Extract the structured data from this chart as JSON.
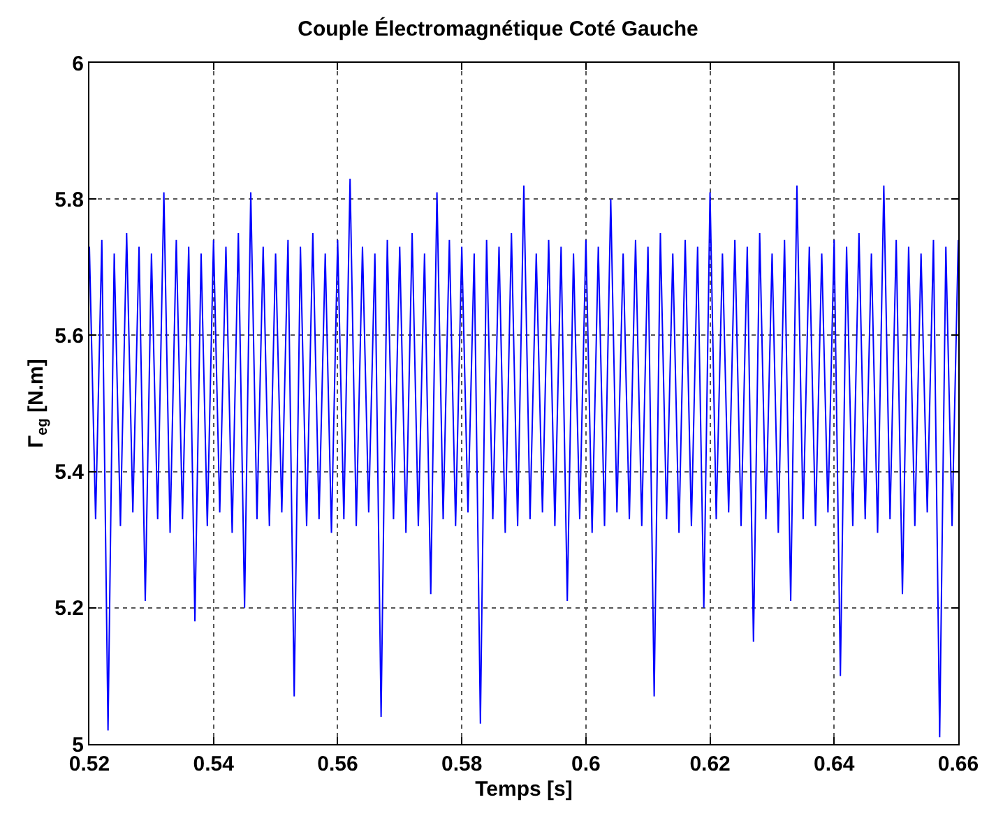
{
  "chart_data": {
    "type": "line",
    "title": "Couple Électromagnétique Coté Gauche",
    "xlabel": "Temps [s]",
    "ylabel": "Γ$_{eg}$ [N.m]",
    "xlim": [
      0.52,
      0.66
    ],
    "xticks": [
      0.52,
      0.54,
      0.56,
      0.58,
      0.6,
      0.62,
      0.64,
      0.66
    ],
    "ylim": [
      5,
      6
    ],
    "yticks": [
      5,
      5.2,
      5.4,
      5.6,
      5.8,
      6
    ],
    "grid": true,
    "legend": false,
    "marker": "none",
    "line_style": "solid",
    "x": [
      0.52,
      0.521,
      0.522,
      0.523,
      0.524,
      0.525,
      0.526,
      0.527,
      0.528,
      0.529,
      0.53,
      0.531,
      0.532,
      0.533,
      0.534,
      0.535,
      0.536,
      0.537,
      0.538,
      0.539,
      0.54,
      0.541,
      0.542,
      0.543,
      0.544,
      0.545,
      0.546,
      0.547,
      0.548,
      0.549,
      0.55,
      0.551,
      0.552,
      0.553,
      0.554,
      0.555,
      0.556,
      0.557,
      0.558,
      0.559,
      0.56,
      0.561,
      0.562,
      0.563,
      0.564,
      0.565,
      0.566,
      0.567,
      0.568,
      0.569,
      0.57,
      0.571,
      0.572,
      0.573,
      0.574,
      0.575,
      0.576,
      0.577,
      0.578,
      0.579,
      0.58,
      0.581,
      0.582,
      0.583,
      0.584,
      0.585,
      0.586,
      0.587,
      0.588,
      0.589,
      0.59,
      0.591,
      0.592,
      0.593,
      0.594,
      0.595,
      0.596,
      0.597,
      0.598,
      0.599,
      0.6,
      0.601,
      0.602,
      0.603,
      0.604,
      0.605,
      0.606,
      0.607,
      0.608,
      0.609,
      0.61,
      0.611,
      0.612,
      0.613,
      0.614,
      0.615,
      0.616,
      0.617,
      0.618,
      0.619,
      0.62,
      0.621,
      0.622,
      0.623,
      0.624,
      0.625,
      0.626,
      0.627,
      0.628,
      0.629,
      0.63,
      0.631,
      0.632,
      0.633,
      0.634,
      0.635,
      0.636,
      0.637,
      0.638,
      0.639,
      0.64,
      0.641,
      0.642,
      0.643,
      0.644,
      0.645,
      0.646,
      0.647,
      0.648,
      0.649,
      0.65,
      0.651,
      0.652,
      0.653,
      0.654,
      0.655,
      0.656,
      0.657,
      0.658,
      0.659,
      0.66
    ],
    "series": [
      {
        "color": "#0000ff",
        "values": [
          5.73,
          5.33,
          5.74,
          5.02,
          5.72,
          5.32,
          5.75,
          5.34,
          5.73,
          5.21,
          5.72,
          5.33,
          5.81,
          5.31,
          5.74,
          5.33,
          5.73,
          5.18,
          5.72,
          5.32,
          5.74,
          5.34,
          5.73,
          5.31,
          5.75,
          5.2,
          5.81,
          5.33,
          5.73,
          5.32,
          5.72,
          5.34,
          5.74,
          5.07,
          5.73,
          5.32,
          5.75,
          5.33,
          5.72,
          5.31,
          5.74,
          5.33,
          5.83,
          5.32,
          5.73,
          5.34,
          5.72,
          5.04,
          5.74,
          5.33,
          5.73,
          5.31,
          5.75,
          5.32,
          5.72,
          5.22,
          5.81,
          5.33,
          5.74,
          5.32,
          5.73,
          5.34,
          5.72,
          5.03,
          5.74,
          5.33,
          5.73,
          5.31,
          5.75,
          5.32,
          5.82,
          5.33,
          5.72,
          5.34,
          5.74,
          5.32,
          5.73,
          5.21,
          5.72,
          5.33,
          5.74,
          5.31,
          5.73,
          5.32,
          5.8,
          5.34,
          5.72,
          5.33,
          5.74,
          5.32,
          5.73,
          5.07,
          5.75,
          5.33,
          5.72,
          5.31,
          5.74,
          5.32,
          5.73,
          5.2,
          5.81,
          5.33,
          5.72,
          5.34,
          5.74,
          5.32,
          5.73,
          5.15,
          5.75,
          5.33,
          5.72,
          5.31,
          5.74,
          5.21,
          5.82,
          5.33,
          5.73,
          5.32,
          5.72,
          5.34,
          5.74,
          5.1,
          5.73,
          5.32,
          5.75,
          5.33,
          5.72,
          5.31,
          5.82,
          5.33,
          5.74,
          5.22,
          5.73,
          5.32,
          5.72,
          5.34,
          5.74,
          5.01,
          5.73,
          5.32,
          5.74
        ]
      }
    ]
  }
}
